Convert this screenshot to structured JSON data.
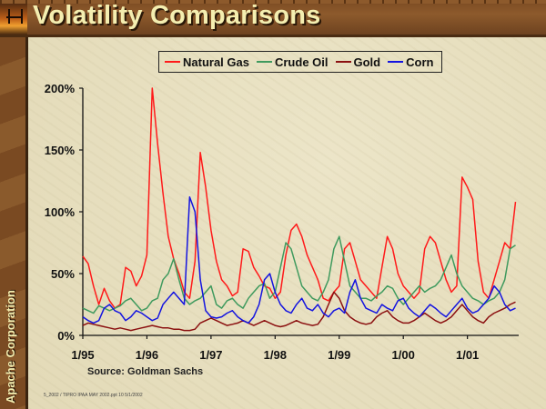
{
  "slide": {
    "title": "Volatility Comparisons",
    "sidebar_text": "Apache Corporation",
    "source": "Source: Goldman Sachs",
    "footer": "5_2002 / TIPRO IPAA MAY 2002.ppt  10  5/1/2002"
  },
  "colors": {
    "natural_gas": "#ff1a1a",
    "crude_oil": "#3f9a5e",
    "gold": "#8b1010",
    "corn": "#1414e0"
  },
  "chart_data": {
    "type": "line",
    "title": "Volatility Comparisons",
    "xlabel": "",
    "ylabel": "",
    "ylim": [
      0,
      200
    ],
    "yticks": [
      0,
      50,
      100,
      150,
      200
    ],
    "ytick_labels": [
      "0%",
      "50%",
      "100%",
      "150%",
      "200%"
    ],
    "xlim": [
      1995.0,
      2001.8
    ],
    "xticks": [
      1995,
      1996,
      1997,
      1998,
      1999,
      2000,
      2001
    ],
    "xtick_labels": [
      "1/95",
      "1/96",
      "1/97",
      "1/98",
      "1/99",
      "1/00",
      "1/01"
    ],
    "legend_position": "top-center",
    "grid": false,
    "x_start": 1995.0,
    "x_step_months": 1,
    "series": [
      {
        "key": "natural_gas",
        "name": "Natural Gas",
        "values": [
          64,
          58,
          40,
          25,
          38,
          28,
          22,
          25,
          55,
          52,
          40,
          48,
          65,
          200,
          155,
          115,
          80,
          62,
          50,
          35,
          30,
          60,
          148,
          120,
          85,
          60,
          45,
          40,
          32,
          35,
          70,
          68,
          55,
          48,
          40,
          38,
          30,
          35,
          65,
          85,
          90,
          80,
          65,
          55,
          45,
          30,
          28,
          35,
          40,
          70,
          75,
          60,
          45,
          40,
          35,
          30,
          55,
          80,
          70,
          50,
          40,
          35,
          30,
          35,
          70,
          80,
          75,
          60,
          45,
          35,
          40,
          128,
          120,
          110,
          60,
          35,
          30,
          45,
          60,
          75,
          70,
          108
        ]
      },
      {
        "key": "crude_oil",
        "name": "Crude Oil",
        "values": [
          22,
          20,
          18,
          24,
          22,
          20,
          22,
          24,
          28,
          30,
          25,
          20,
          22,
          28,
          30,
          45,
          50,
          62,
          45,
          30,
          25,
          28,
          30,
          35,
          40,
          25,
          22,
          28,
          30,
          25,
          22,
          30,
          35,
          40,
          42,
          30,
          35,
          55,
          75,
          70,
          55,
          40,
          35,
          30,
          28,
          35,
          45,
          70,
          80,
          60,
          40,
          35,
          30,
          30,
          28,
          32,
          35,
          40,
          38,
          30,
          25,
          30,
          35,
          40,
          35,
          38,
          40,
          45,
          55,
          65,
          50,
          40,
          35,
          30,
          28,
          25,
          28,
          30,
          35,
          45,
          70,
          73
        ]
      },
      {
        "key": "gold",
        "name": "Gold",
        "values": [
          8,
          10,
          9,
          8,
          7,
          6,
          5,
          6,
          5,
          4,
          5,
          6,
          7,
          8,
          7,
          6,
          6,
          5,
          5,
          4,
          4,
          5,
          10,
          12,
          14,
          12,
          10,
          8,
          9,
          10,
          12,
          10,
          8,
          10,
          12,
          10,
          8,
          7,
          8,
          10,
          12,
          10,
          9,
          8,
          9,
          15,
          25,
          35,
          30,
          20,
          15,
          12,
          10,
          9,
          10,
          15,
          18,
          20,
          15,
          12,
          10,
          10,
          12,
          15,
          18,
          15,
          12,
          10,
          12,
          15,
          20,
          25,
          20,
          15,
          12,
          10,
          15,
          18,
          20,
          22,
          25,
          27
        ]
      },
      {
        "key": "corn",
        "name": "Corn",
        "values": [
          15,
          12,
          10,
          12,
          22,
          25,
          20,
          18,
          12,
          15,
          20,
          18,
          15,
          12,
          14,
          25,
          30,
          35,
          30,
          25,
          112,
          100,
          45,
          20,
          15,
          14,
          15,
          18,
          20,
          15,
          12,
          10,
          15,
          25,
          45,
          50,
          35,
          25,
          20,
          18,
          25,
          30,
          22,
          20,
          25,
          18,
          15,
          20,
          22,
          18,
          35,
          45,
          30,
          22,
          20,
          18,
          25,
          22,
          20,
          28,
          30,
          22,
          18,
          15,
          20,
          25,
          22,
          18,
          15,
          20,
          25,
          30,
          22,
          18,
          20,
          25,
          30,
          40,
          35,
          25,
          20,
          22
        ]
      }
    ]
  }
}
